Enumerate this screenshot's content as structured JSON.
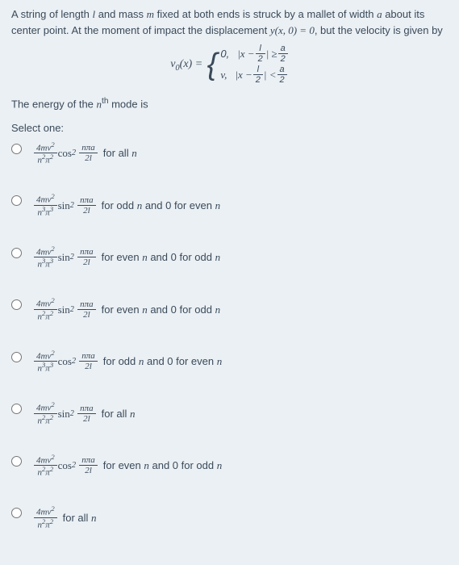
{
  "intro1": "A string of length ",
  "intro_l": "l",
  "intro2": " and mass ",
  "intro_m": "m",
  "intro3": " fixed at both ends is struck by a mallet of width ",
  "intro_a": "a",
  "intro4": " about its center point. At the moment of impact the displacement ",
  "intro_y": "y(x, 0) = 0",
  "intro5": ", but the velocity is given by",
  "v0": "v",
  "v0sub": "0",
  "v0arg": "(x) = ",
  "case1_lead": "0,",
  "case1_cond_a": "|x − ",
  "case1_cond_b": "| ≥ ",
  "case2_lead": "v,",
  "case2_cond_a": "|x − ",
  "case2_cond_b": "| < ",
  "half_l_num": "l",
  "half_l_den": "2",
  "half_a_num": "a",
  "half_a_den": "2",
  "energy1": "The energy of the ",
  "energy_n": "n",
  "energy_th": "th",
  "energy2": " mode is",
  "select": "Select one:",
  "frac_main_num": "4mv",
  "frac_main_num_sup": "2",
  "frac_main_den_n": "n",
  "frac_main_den_pi": "π",
  "cos": "cos",
  "sin": "sin",
  "sq": "2",
  "arg_num": "nπa",
  "arg_den": "2l",
  "tail_all": " for all ",
  "tail_n": "n",
  "tail_odd_even": " for odd ",
  "tail_and_zero_even": " and 0 for even ",
  "tail_even_odd": " for even ",
  "tail_and_zero_odd": " and 0 for odd ",
  "options": {
    "colors": {
      "text": "#3a4a5a",
      "bg": "#ebf0f4"
    }
  }
}
